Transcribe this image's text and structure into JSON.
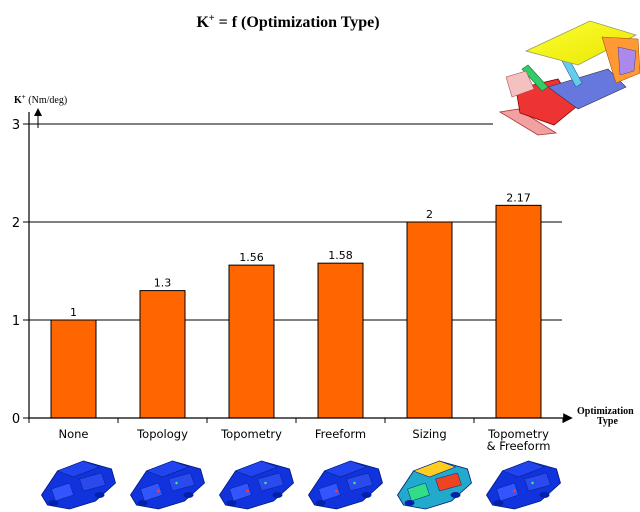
{
  "chart_data": {
    "type": "bar",
    "title_main": "K",
    "title_sup": "+",
    "title_rest": " = f (Optimization Type)",
    "ylabel_main": "K",
    "ylabel_sup": "+",
    "ylabel_unit": " (Nm/deg)",
    "xlabel_line1": "Optimization",
    "xlabel_line2": "Type",
    "categories": [
      [
        "None"
      ],
      [
        "Topology"
      ],
      [
        "Topometry"
      ],
      [
        "Freeform"
      ],
      [
        "Sizing"
      ],
      [
        "Topometry",
        "& Freeform"
      ]
    ],
    "values": [
      1,
      1.3,
      1.56,
      1.58,
      2,
      2.17
    ],
    "value_labels": [
      "1",
      "1.3",
      "1.56",
      "1.58",
      "2",
      "2.17"
    ],
    "ylim": [
      0,
      3
    ],
    "yticks": [
      0,
      1,
      2,
      3
    ],
    "ytick_labels": [
      "0",
      "1",
      "2",
      "3"
    ],
    "grid": true,
    "bar_color": "#FF6600",
    "bar_edge_color": "#000000"
  },
  "images": {
    "car_body_image": "car body-in-white model (colored components)",
    "fe_thumbnails": [
      "fe-model-none",
      "fe-model-topology",
      "fe-model-topometry",
      "fe-model-freeform",
      "fe-model-sizing",
      "fe-model-topometry-freeform"
    ]
  }
}
